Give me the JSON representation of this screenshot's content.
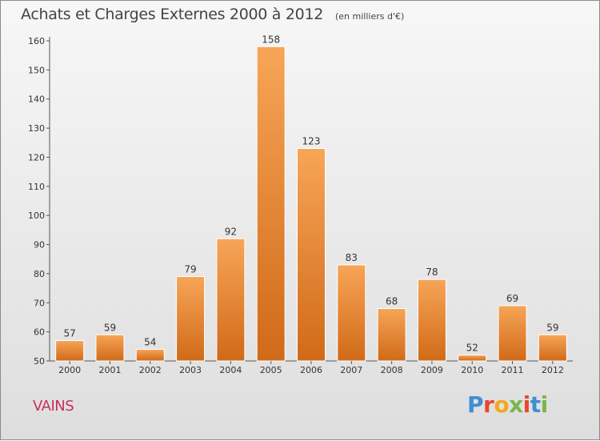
{
  "title": "Achats et Charges Externes 2000 à 2012",
  "subtitle": "(en milliers d'€)",
  "place": "VAINS",
  "logo": {
    "text": "Proxiti",
    "colors": [
      "#3d8fd1",
      "#e6482f",
      "#f2a81d",
      "#7ab648",
      "#e6482f",
      "#3d8fd1",
      "#7ab648"
    ]
  },
  "colors": {
    "bar_light": "#f7a557",
    "bar_dark": "#d06a18",
    "title": "#444444",
    "place": "#c8305a"
  },
  "chart_data": {
    "type": "bar",
    "categories": [
      "2000",
      "2001",
      "2002",
      "2003",
      "2004",
      "2005",
      "2006",
      "2007",
      "2008",
      "2009",
      "2010",
      "2011",
      "2012"
    ],
    "values": [
      57,
      59,
      54,
      79,
      92,
      158,
      123,
      83,
      68,
      78,
      52,
      69,
      59
    ],
    "ylim": [
      50,
      160
    ],
    "yticks": [
      50,
      60,
      70,
      80,
      90,
      100,
      110,
      120,
      130,
      140,
      150,
      160
    ],
    "grid": false,
    "xlabel": "",
    "ylabel": ""
  }
}
